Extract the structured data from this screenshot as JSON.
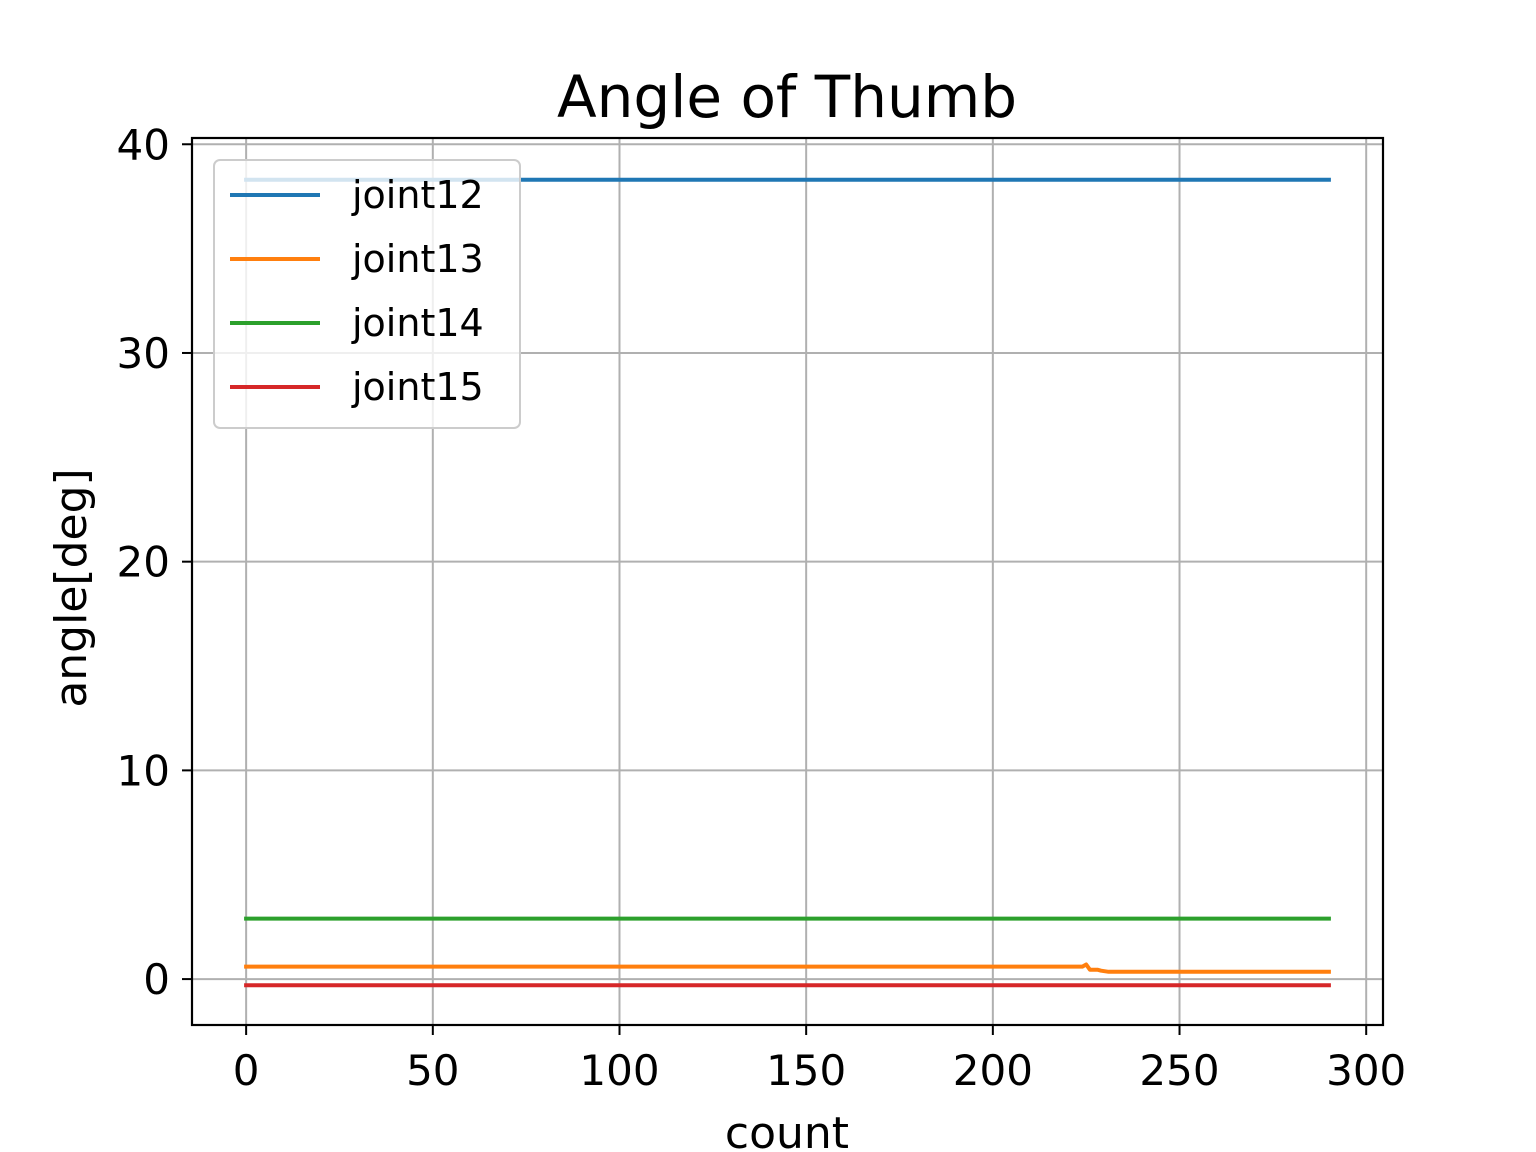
{
  "chart_data": {
    "type": "line",
    "title": "Angle of Thumb",
    "xlabel": "count",
    "ylabel": "angle[deg]",
    "xlim": [
      -14.5,
      304.5
    ],
    "ylim": [
      -2.2,
      40.3
    ],
    "xticks": [
      0,
      50,
      100,
      150,
      200,
      250,
      300
    ],
    "yticks": [
      0,
      10,
      20,
      30,
      40
    ],
    "grid": true,
    "legend": "upper left",
    "series": [
      {
        "name": "joint12",
        "color": "#1f77b4",
        "points": [
          [
            0,
            38.3
          ],
          [
            290,
            38.3
          ]
        ]
      },
      {
        "name": "joint13",
        "color": "#ff7f0e",
        "points": [
          [
            0,
            0.6
          ],
          [
            224,
            0.6
          ],
          [
            225,
            0.7
          ],
          [
            226,
            0.45
          ],
          [
            228,
            0.45
          ],
          [
            229,
            0.4
          ],
          [
            231,
            0.35
          ],
          [
            290,
            0.35
          ]
        ]
      },
      {
        "name": "joint14",
        "color": "#2ca02c",
        "points": [
          [
            0,
            2.9
          ],
          [
            290,
            2.9
          ]
        ]
      },
      {
        "name": "joint15",
        "color": "#d62728",
        "points": [
          [
            0,
            -0.3
          ],
          [
            290,
            -0.3
          ]
        ]
      }
    ]
  }
}
